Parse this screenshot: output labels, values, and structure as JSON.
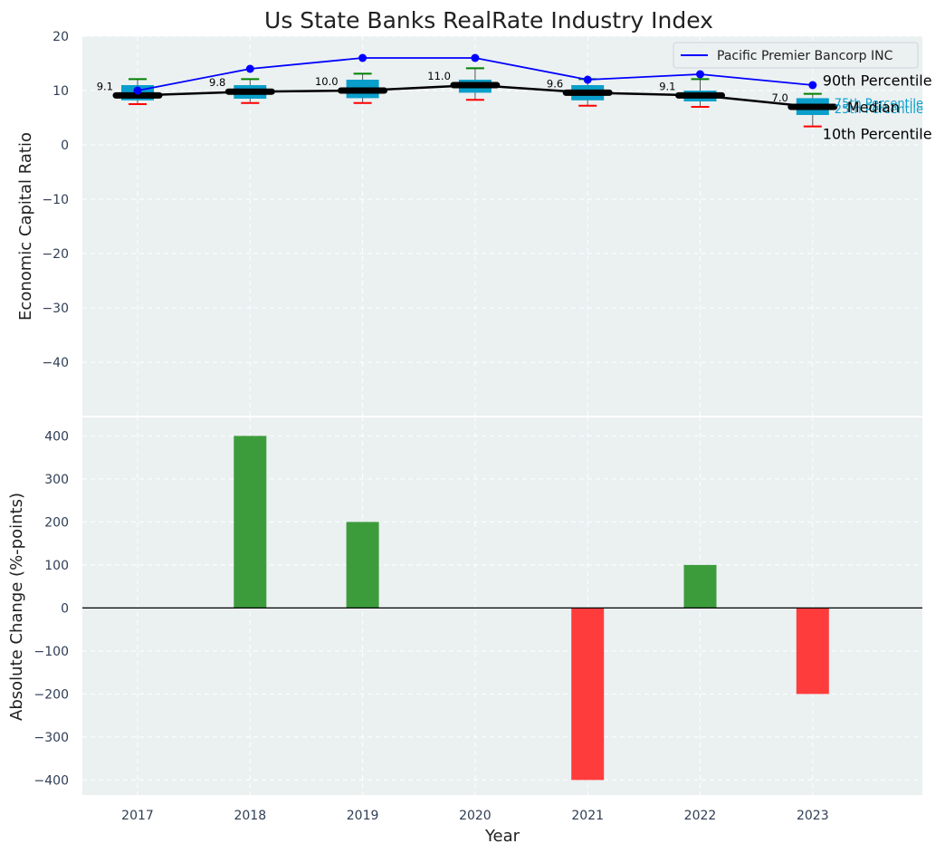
{
  "chart_data": [
    {
      "type": "box",
      "title": "Us State Banks RealRate Industry Index",
      "ylabel": "Economic Capital Ratio",
      "xlabel": "",
      "ylim": [
        -50,
        20
      ],
      "yticks": [
        20,
        10,
        0,
        -10,
        -20,
        -30,
        -40
      ],
      "ytick_labels": [
        "20",
        "10",
        "0",
        "−10",
        "−20",
        "−30",
        "−40"
      ],
      "grid": true,
      "categories": [
        "2017",
        "2018",
        "2019",
        "2020",
        "2021",
        "2022",
        "2023"
      ],
      "boxes": [
        {
          "p10": 7.5,
          "q1": 8.2,
          "median": 9.1,
          "q3": 11.0,
          "p90": 12.1,
          "median_label": "9.1"
        },
        {
          "p10": 7.7,
          "q1": 8.5,
          "median": 9.8,
          "q3": 11.0,
          "p90": 12.1,
          "median_label": "9.8"
        },
        {
          "p10": 7.7,
          "q1": 8.6,
          "median": 10.0,
          "q3": 12.0,
          "p90": 13.1,
          "median_label": "10.0"
        },
        {
          "p10": 8.3,
          "q1": 9.6,
          "median": 11.0,
          "q3": 12.0,
          "p90": 14.1,
          "median_label": "11.0"
        },
        {
          "p10": 7.2,
          "q1": 8.2,
          "median": 9.6,
          "q3": 11.0,
          "p90": 12.1,
          "median_label": "9.6"
        },
        {
          "p10": 7.0,
          "q1": 8.0,
          "median": 9.1,
          "q3": 10.0,
          "p90": 12.1,
          "median_label": "9.1"
        },
        {
          "p10": 3.4,
          "q1": 5.5,
          "median": 7.0,
          "q3": 8.6,
          "p90": 9.4,
          "median_label": "7.0"
        }
      ],
      "series": [
        {
          "name": "Pacific Premier Bancorp INC",
          "color": "#0000ff",
          "values": [
            10,
            14,
            16,
            16,
            12,
            13,
            11
          ]
        }
      ],
      "annotations": {
        "p90": "90th Percentile",
        "p75": "75th Percentile",
        "median": "Median",
        "p25": "25th Percentile",
        "p10": "10th Percentile"
      },
      "legend_position": "top-right",
      "colors": {
        "box": "#0a9fca",
        "median": "#000000",
        "whisker_top": "#008000",
        "whisker_bottom": "#ff0000"
      }
    },
    {
      "type": "bar",
      "title": "",
      "xlabel": "Year",
      "ylabel": "Absolute Change (%-points)",
      "ylim": [
        -435,
        445
      ],
      "yticks": [
        400,
        300,
        200,
        100,
        0,
        -100,
        -200,
        -300,
        -400
      ],
      "ytick_labels": [
        "400",
        "300",
        "200",
        "100",
        "0",
        "−100",
        "−200",
        "−300",
        "−400"
      ],
      "grid": true,
      "categories": [
        "2017",
        "2018",
        "2019",
        "2020",
        "2021",
        "2022",
        "2023"
      ],
      "values": [
        0,
        400,
        200,
        0,
        -400,
        100,
        -200
      ],
      "colors": {
        "positive": "#3c9c3c",
        "negative": "#ff3c3c"
      }
    }
  ]
}
